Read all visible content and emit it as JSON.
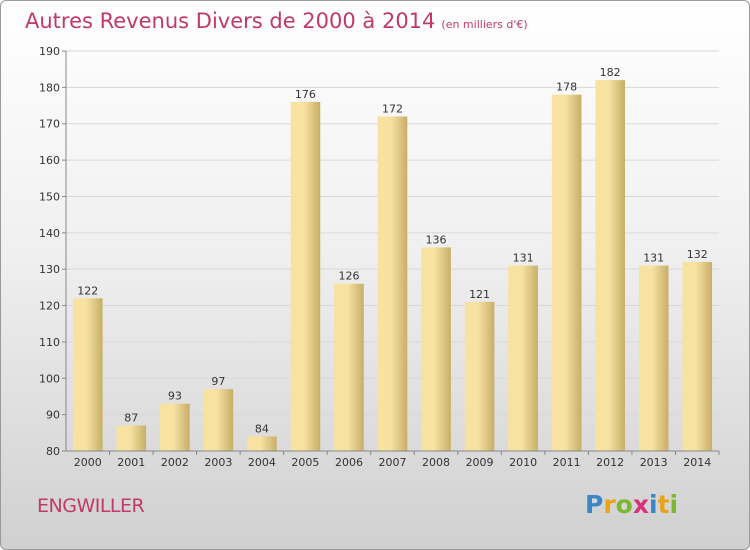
{
  "header": {
    "title": "Autres Revenus Divers de 2000 à 2014",
    "subtitle": "(en milliers d'€)"
  },
  "footer": {
    "commune": "ENGWILLER",
    "brand": "Proxiti"
  },
  "colors": {
    "title": "#c0396a",
    "bar_light": "#f8e2a2",
    "bar_dark": "#c7ae68",
    "grid": "#d8d8d8",
    "axis": "#888888"
  },
  "brand_letters": [
    {
      "char": "P",
      "color": "#3a86c8"
    },
    {
      "char": "r",
      "color": "#e8a317"
    },
    {
      "char": "o",
      "color": "#7cb82f"
    },
    {
      "char": "x",
      "color": "#d9327a"
    },
    {
      "char": "i",
      "color": "#3a86c8"
    },
    {
      "char": "t",
      "color": "#e8a317"
    },
    {
      "char": "i",
      "color": "#7cb82f"
    }
  ],
  "chart_data": {
    "type": "bar",
    "categories": [
      "2000",
      "2001",
      "2002",
      "2003",
      "2004",
      "2005",
      "2006",
      "2007",
      "2008",
      "2009",
      "2010",
      "2011",
      "2012",
      "2013",
      "2014"
    ],
    "values": [
      122,
      87,
      93,
      97,
      84,
      176,
      126,
      172,
      136,
      121,
      131,
      178,
      182,
      131,
      132
    ],
    "title": "Autres Revenus Divers de 2000 à 2014",
    "subtitle": "(en milliers d'€)",
    "xlabel": "",
    "ylabel": "",
    "ylim": [
      80,
      190
    ],
    "yticks": [
      80,
      90,
      100,
      110,
      120,
      130,
      140,
      150,
      160,
      170,
      180,
      190
    ],
    "grid": true,
    "legend": "none"
  }
}
